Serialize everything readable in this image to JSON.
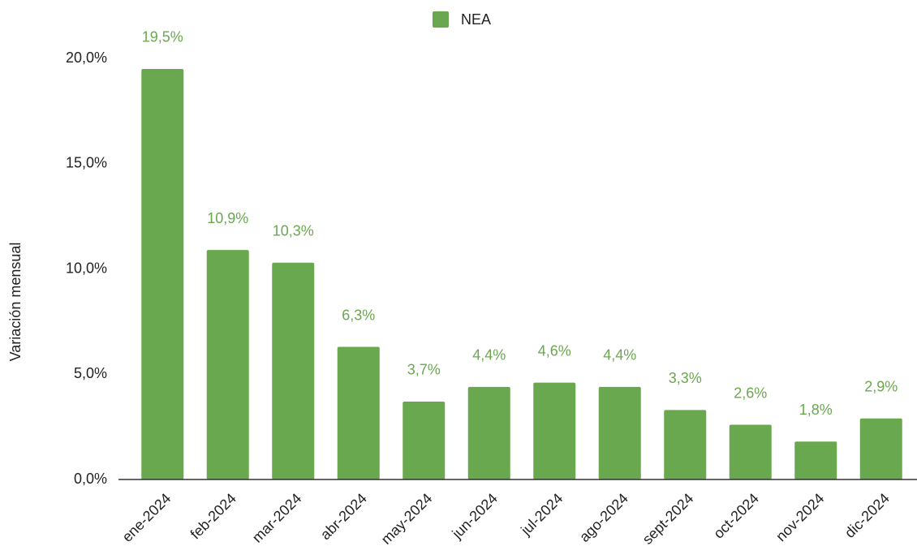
{
  "chart_data": {
    "type": "bar",
    "y_axis_label": "Variación mensual",
    "categories": [
      "ene-2024",
      "feb-2024",
      "mar-2024",
      "abr-2024",
      "may-2024",
      "jun-2024",
      "jul-2024",
      "ago-2024",
      "sept-2024",
      "oct-2024",
      "nov-2024",
      "dic-2024"
    ],
    "series": [
      {
        "name": "NEA",
        "color": "#6aa84f",
        "values": [
          19.5,
          10.9,
          10.3,
          6.3,
          3.7,
          4.4,
          4.6,
          4.4,
          3.3,
          2.6,
          1.8,
          2.9
        ],
        "value_labels": [
          "19,5%",
          "10,9%",
          "10,3%",
          "6,3%",
          "3,7%",
          "4,4%",
          "4,6%",
          "4,4%",
          "3,3%",
          "2,6%",
          "1,8%",
          "2,9%"
        ]
      }
    ],
    "ylim": [
      0,
      20
    ],
    "yticks": [
      {
        "value": 0,
        "label": "0,0%"
      },
      {
        "value": 5,
        "label": "5,0%"
      },
      {
        "value": 10,
        "label": "10,0%"
      },
      {
        "value": 15,
        "label": "15,0%"
      },
      {
        "value": 20,
        "label": "20,0%"
      }
    ],
    "grid": false,
    "legend": "top"
  }
}
